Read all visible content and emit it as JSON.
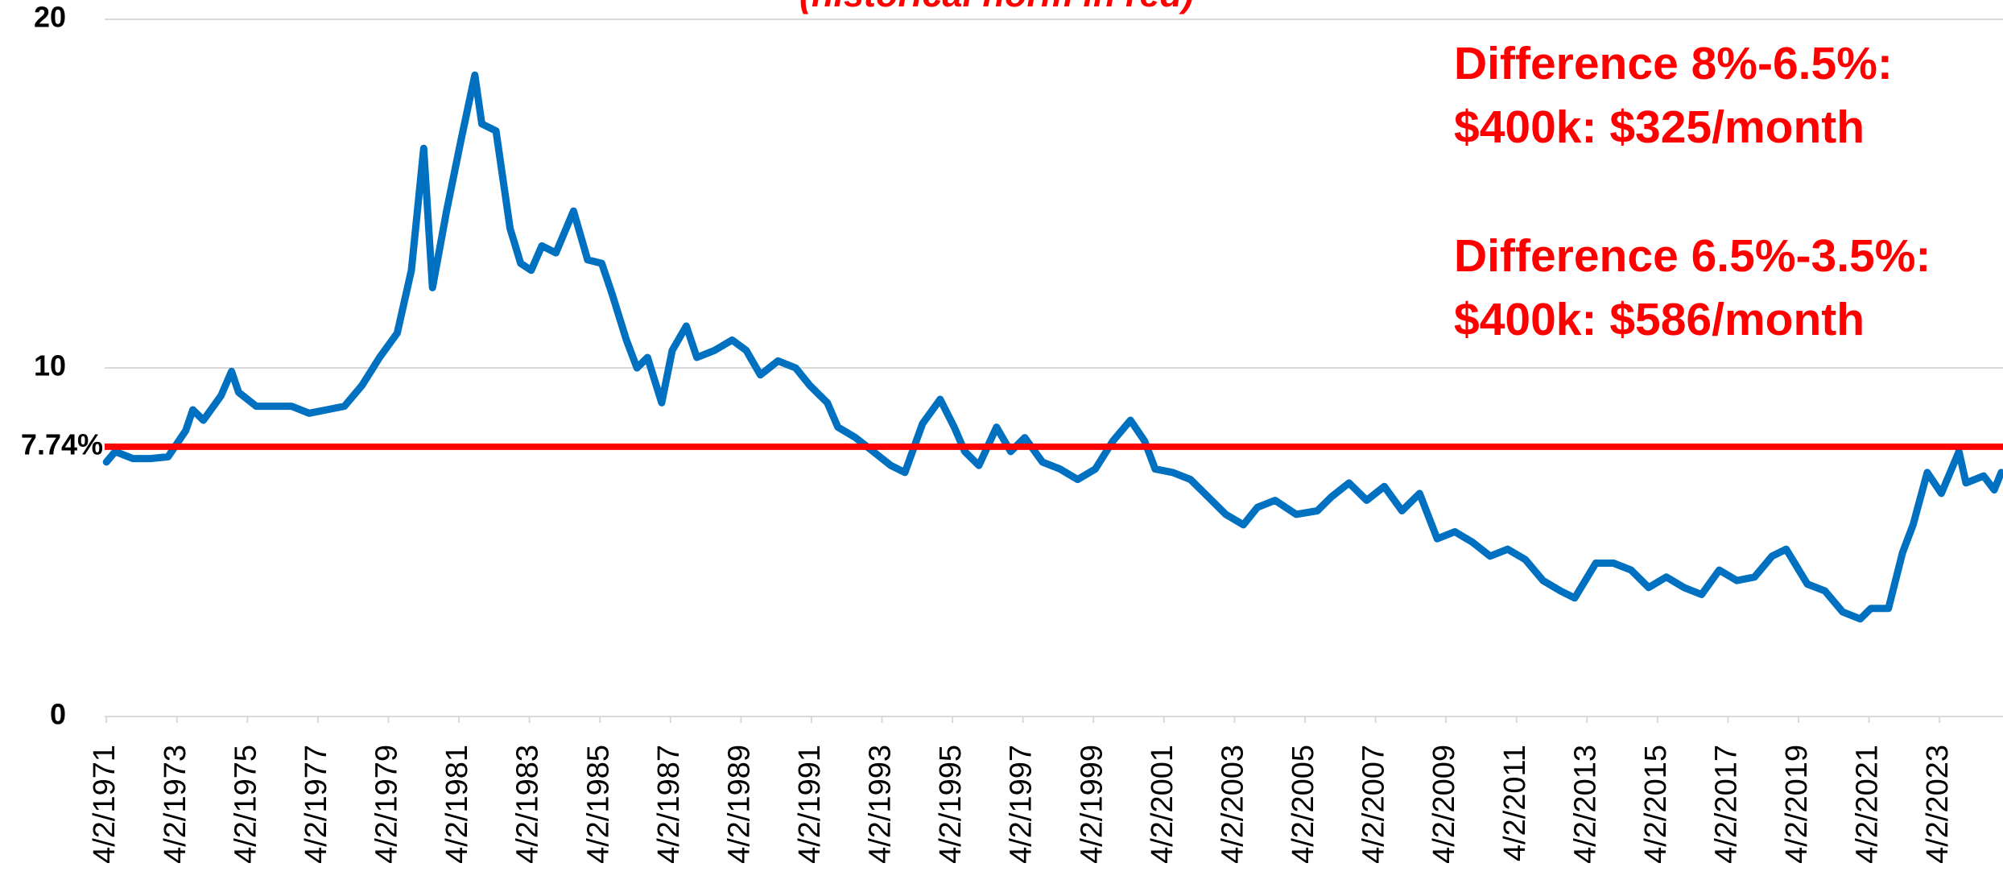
{
  "chart_data": {
    "type": "line",
    "subtitle": "(historical norm in red)",
    "x": [
      1971.25,
      1971.5,
      1972,
      1972.5,
      1973,
      1973.5,
      1973.7,
      1974,
      1974.5,
      1974.8,
      1975,
      1975.5,
      1976,
      1976.5,
      1977,
      1977.5,
      1978,
      1978.5,
      1979,
      1979.5,
      1979.9,
      1980.25,
      1980.5,
      1980.9,
      1981.3,
      1981.7,
      1981.9,
      1982.3,
      1982.7,
      1983,
      1983.3,
      1983.6,
      1984,
      1984.5,
      1984.9,
      1985.3,
      1985.6,
      1986,
      1986.3,
      1986.6,
      1987,
      1987.3,
      1987.7,
      1988,
      1988.5,
      1989,
      1989.4,
      1989.8,
      1990.3,
      1990.8,
      1991.2,
      1991.7,
      1992,
      1992.5,
      1993,
      1993.5,
      1993.9,
      1994.4,
      1994.9,
      1995.3,
      1995.6,
      1996,
      1996.5,
      1996.9,
      1997.3,
      1997.8,
      1998.3,
      1998.8,
      1999.3,
      1999.8,
      2000.3,
      2000.7,
      2001,
      2001.5,
      2002,
      2002.5,
      2003,
      2003.5,
      2003.9,
      2004.4,
      2005,
      2005.6,
      2006,
      2006.5,
      2007,
      2007.5,
      2008,
      2008.5,
      2009,
      2009.5,
      2010,
      2010.5,
      2011,
      2011.5,
      2012,
      2012.5,
      2012.9,
      2013.5,
      2014,
      2014.5,
      2015,
      2015.5,
      2016,
      2016.5,
      2017,
      2017.5,
      2018,
      2018.5,
      2018.9,
      2019.5,
      2020,
      2020.5,
      2021,
      2021.3,
      2021.8,
      2022.2,
      2022.5,
      2022.9,
      2023.3,
      2023.8,
      2024,
      2024.5,
      2024.8,
      2025
    ],
    "series": [
      {
        "color": "#0070c0",
        "values": [
          7.3,
          7.6,
          7.4,
          7.4,
          7.45,
          8.2,
          8.8,
          8.5,
          9.2,
          9.9,
          9.3,
          8.9,
          8.9,
          8.9,
          8.7,
          8.8,
          8.9,
          9.5,
          10.3,
          11.0,
          12.8,
          16.3,
          12.3,
          14.5,
          16.5,
          18.4,
          17.0,
          16.8,
          14.0,
          13.0,
          12.8,
          13.5,
          13.3,
          14.5,
          13.1,
          13.0,
          12.1,
          10.8,
          10.0,
          10.3,
          9.0,
          10.5,
          11.2,
          10.3,
          10.5,
          10.8,
          10.5,
          9.8,
          10.2,
          10.0,
          9.5,
          9.0,
          8.3,
          8.0,
          7.6,
          7.2,
          7.0,
          8.4,
          9.1,
          8.3,
          7.6,
          7.2,
          8.3,
          7.6,
          8.0,
          7.3,
          7.1,
          6.8,
          7.1,
          7.9,
          8.5,
          7.9,
          7.1,
          7.0,
          6.8,
          6.3,
          5.8,
          5.5,
          6.0,
          6.2,
          5.8,
          5.9,
          6.3,
          6.7,
          6.2,
          6.6,
          5.9,
          6.4,
          5.1,
          5.3,
          5.0,
          4.6,
          4.8,
          4.5,
          3.9,
          3.6,
          3.4,
          4.4,
          4.4,
          4.2,
          3.7,
          4.0,
          3.7,
          3.5,
          4.2,
          3.9,
          4.0,
          4.6,
          4.8,
          3.8,
          3.6,
          3.0,
          2.8,
          3.1,
          3.1,
          4.7,
          5.5,
          7.0,
          6.4,
          7.6,
          6.7,
          6.9,
          6.5,
          7.0
        ]
      }
    ],
    "reference_line": {
      "value": 7.74,
      "label": "7.74%",
      "color": "#ff0000"
    },
    "xlim": [
      1971.2,
      2025.05
    ],
    "xticks": [
      {
        "value": 1971.25,
        "label": "4/2/1971"
      },
      {
        "value": 1973.25,
        "label": "4/2/1973"
      },
      {
        "value": 1975.25,
        "label": "4/2/1975"
      },
      {
        "value": 1977.25,
        "label": "4/2/1977"
      },
      {
        "value": 1979.25,
        "label": "4/2/1979"
      },
      {
        "value": 1981.25,
        "label": "4/2/1981"
      },
      {
        "value": 1983.25,
        "label": "4/2/1983"
      },
      {
        "value": 1985.25,
        "label": "4/2/1985"
      },
      {
        "value": 1987.25,
        "label": "4/2/1987"
      },
      {
        "value": 1989.25,
        "label": "4/2/1989"
      },
      {
        "value": 1991.25,
        "label": "4/2/1991"
      },
      {
        "value": 1993.25,
        "label": "4/2/1993"
      },
      {
        "value": 1995.25,
        "label": "4/2/1995"
      },
      {
        "value": 1997.25,
        "label": "4/2/1997"
      },
      {
        "value": 1999.25,
        "label": "4/2/1999"
      },
      {
        "value": 2001.25,
        "label": "4/2/2001"
      },
      {
        "value": 2003.25,
        "label": "4/2/2003"
      },
      {
        "value": 2005.25,
        "label": "4/2/2005"
      },
      {
        "value": 2007.25,
        "label": "4/2/2007"
      },
      {
        "value": 2009.25,
        "label": "4/2/2009"
      },
      {
        "value": 2011.25,
        "label": "4/2/2011"
      },
      {
        "value": 2013.25,
        "label": "4/2/2013"
      },
      {
        "value": 2015.25,
        "label": "4/2/2015"
      },
      {
        "value": 2017.25,
        "label": "4/2/2017"
      },
      {
        "value": 2019.25,
        "label": "4/2/2019"
      },
      {
        "value": 2021.25,
        "label": "4/2/2021"
      },
      {
        "value": 2023.25,
        "label": "4/2/2023"
      }
    ],
    "ylim": [
      0,
      20
    ],
    "yticks": [
      0,
      10,
      20
    ],
    "grid": true,
    "annotations": [
      {
        "color": "#ff0000",
        "lines": [
          "Difference 8%-6.5%:",
          "$400k: $325/month"
        ]
      },
      {
        "color": "#ff0000",
        "lines": [
          "Difference 6.5%-3.5%:",
          "$400k: $586/month"
        ]
      }
    ]
  }
}
